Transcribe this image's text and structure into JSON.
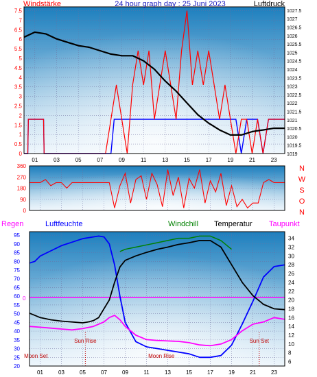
{
  "colors": {
    "wind": "#ff0000",
    "gust": "#0000ff",
    "pressure": "#000000",
    "direction": "#ff0000",
    "humidity": "#0000ff",
    "temperature": "#000000",
    "windchill": "#008000",
    "dewpoint": "#ff00ff",
    "rain": "#ff00ff",
    "annotation": "#c00000",
    "grid": "#6f6f9f"
  },
  "chart_data": [
    {
      "type": "line",
      "id": "wind-pressure",
      "title": "24 hour graph day : 25 Juni 2023",
      "left_label": "Windstärke",
      "right_label": "Luftdruck",
      "x_ticks": [
        "01",
        "03",
        "05",
        "07",
        "09",
        "11",
        "13",
        "15",
        "17",
        "19",
        "21",
        "23"
      ],
      "y_left_ticks": [
        "0",
        "0.5",
        "1",
        "1.5",
        "2",
        "2.5",
        "3",
        "3.5",
        "4",
        "4.5",
        "5",
        "5.5",
        "6",
        "6.5",
        "7",
        "7.5"
      ],
      "y_left_lim": [
        0,
        7.7
      ],
      "y_right_ticks": [
        "1019",
        "1019.5",
        "1020",
        "1020.5",
        "1021",
        "1021.5",
        "1022",
        "1022.5",
        "1023",
        "1023.5",
        "1024",
        "1024.5",
        "1025",
        "1025.5",
        "1026",
        "1026.5",
        "1027",
        "1027.5"
      ],
      "y_right_lim": [
        1019,
        1027.7
      ],
      "grid": true,
      "series": [
        {
          "key": "pressure",
          "x": [
            0,
            1,
            2,
            3,
            4,
            5,
            6,
            7,
            8,
            9,
            10,
            11,
            12,
            13,
            14,
            15,
            16,
            17,
            18,
            19,
            20,
            21,
            22,
            23,
            24
          ],
          "values": [
            1025.9,
            1026.2,
            1026.1,
            1025.8,
            1025.6,
            1025.4,
            1025.3,
            1025.1,
            1024.9,
            1024.8,
            1024.8,
            1024.5,
            1024.0,
            1023.3,
            1022.7,
            1022.0,
            1021.3,
            1020.8,
            1020.4,
            1020.1,
            1020.1,
            1020.3,
            1020.4,
            1020.5,
            1020.5
          ]
        },
        {
          "key": "gust",
          "x": [
            0,
            0.35,
            0.4,
            1.8,
            1.85,
            5.5,
            5.55,
            7.2,
            7.25,
            8.0,
            8.3,
            9.5,
            10.5,
            11.5,
            12.5,
            13.5,
            14.5,
            15.5,
            16.5,
            17.5,
            18.5,
            19.5,
            20.0,
            20.5,
            21.5,
            22.0,
            22.5,
            23.5,
            24
          ],
          "values": [
            0,
            0,
            1.8,
            1.8,
            0,
            0,
            0,
            0,
            0,
            0,
            1.8,
            1.8,
            1.8,
            1.8,
            1.8,
            1.8,
            1.8,
            1.8,
            1.8,
            1.8,
            1.8,
            1.8,
            0,
            1.8,
            1.8,
            0,
            1.8,
            1.8,
            1.8
          ]
        },
        {
          "key": "wind",
          "x": [
            0,
            0.35,
            0.4,
            1.8,
            1.85,
            7.0,
            7.5,
            8.5,
            9.0,
            9.5,
            10.0,
            10.5,
            11.0,
            11.5,
            12.0,
            12.5,
            13.0,
            13.5,
            14.0,
            14.5,
            15.0,
            15.5,
            16.0,
            16.5,
            17.0,
            17.5,
            18.0,
            18.5,
            19.0,
            19.5,
            20.0,
            20.5,
            21.0,
            21.5,
            22.0,
            22.5,
            23.0,
            23.5,
            24.0
          ],
          "values": [
            0,
            0,
            1.8,
            1.8,
            0,
            0,
            0,
            3.6,
            1.8,
            0,
            3.6,
            5.4,
            3.6,
            5.4,
            1.8,
            3.6,
            5.4,
            3.6,
            1.8,
            5.4,
            7.5,
            3.6,
            5.4,
            3.6,
            5.4,
            3.6,
            1.8,
            3.6,
            1.8,
            0,
            1.8,
            1.8,
            0,
            1.8,
            0,
            1.8,
            1.8,
            1.8,
            1.8
          ]
        }
      ]
    },
    {
      "type": "line",
      "id": "wind-direction",
      "y_ticks": [
        "0",
        "90",
        "180",
        "270",
        "360"
      ],
      "y_lim": [
        0,
        360
      ],
      "direction_labels": [
        "N",
        "W",
        "S",
        "O",
        "N"
      ],
      "grid": true,
      "series": [
        {
          "key": "direction",
          "x": [
            0,
            0.5,
            1.0,
            1.5,
            2.0,
            2.5,
            3.0,
            3.5,
            4.0,
            4.5,
            5.0,
            5.5,
            6.0,
            6.5,
            7.0,
            7.5,
            8.0,
            8.5,
            9.0,
            9.5,
            10.0,
            10.5,
            11.0,
            11.5,
            12.0,
            12.5,
            13.0,
            13.5,
            14.0,
            14.5,
            15.0,
            15.5,
            16.0,
            16.5,
            17.0,
            17.5,
            18.0,
            18.5,
            19.0,
            19.5,
            20.0,
            20.5,
            21.0,
            21.5,
            22.0,
            22.5,
            23.0,
            23.5,
            24.0
          ],
          "values": [
            225,
            225,
            225,
            250,
            200,
            225,
            225,
            180,
            225,
            225,
            225,
            225,
            225,
            225,
            225,
            225,
            20,
            200,
            300,
            60,
            250,
            280,
            90,
            300,
            210,
            30,
            330,
            120,
            270,
            20,
            260,
            180,
            330,
            60,
            240,
            150,
            300,
            40,
            200,
            30,
            90,
            20,
            60,
            60,
            225,
            250,
            225,
            225,
            225
          ]
        }
      ]
    },
    {
      "type": "line",
      "id": "humidity-temperature",
      "legend": [
        "Regen",
        "Luftfeuchte",
        "Windchill",
        "Temperatur",
        "Taupunkt"
      ],
      "x_ticks": [
        "01",
        "03",
        "05",
        "07",
        "09",
        "11",
        "13",
        "15",
        "17",
        "19",
        "21",
        "23"
      ],
      "y_left_ticks": [
        "20",
        "25",
        "30",
        "35",
        "40",
        "45",
        "50",
        "55",
        "60",
        "65",
        "70",
        "75",
        "80",
        "85",
        "90",
        "95"
      ],
      "y_left_lim": [
        20,
        97
      ],
      "y_right_ticks": [
        "6",
        "8",
        "10",
        "12",
        "14",
        "16",
        "18",
        "20",
        "22",
        "24",
        "26",
        "28",
        "30",
        "32",
        "34"
      ],
      "y_right_lim": [
        5,
        35.5
      ],
      "rain_label": "0",
      "annotations": [
        {
          "text": "Sun Rise",
          "x": 5.25
        },
        {
          "text": "Moon Set",
          "x": 0.6
        },
        {
          "text": "Moon Rise",
          "x": 12.4
        },
        {
          "text": "Sun Set",
          "x": 21.6
        }
      ],
      "grid": true,
      "series": [
        {
          "key": "humidity",
          "x": [
            0,
            0.5,
            1,
            2,
            3,
            4,
            5,
            6,
            6.5,
            7,
            7.5,
            8,
            8.5,
            9,
            10,
            11,
            12,
            13,
            14,
            15,
            16,
            17,
            18,
            19,
            20,
            21,
            22,
            23,
            24
          ],
          "values": [
            79,
            80,
            83,
            86,
            89,
            91,
            93,
            94,
            94.5,
            94,
            90,
            78,
            60,
            45,
            34,
            31,
            30,
            29,
            28,
            27,
            25,
            25,
            26,
            32,
            44,
            57,
            71,
            77,
            78
          ]
        },
        {
          "key": "temperature",
          "x": [
            0,
            0.5,
            1,
            2,
            3,
            4,
            5,
            5.5,
            6,
            6.5,
            7,
            7.5,
            8,
            8.5,
            9,
            10,
            11,
            12,
            13,
            14,
            15,
            16,
            17,
            18,
            19,
            20,
            21,
            22,
            23,
            24
          ],
          "values": [
            17,
            16.5,
            16,
            15.5,
            15.2,
            15,
            14.8,
            15,
            15.3,
            16,
            18,
            20,
            24,
            27.5,
            29,
            30,
            30.8,
            31.5,
            32,
            32.6,
            33,
            33.5,
            33.5,
            32,
            28,
            24,
            21,
            19,
            18,
            17.8
          ]
        },
        {
          "key": "windchill",
          "x": [
            8.5,
            9,
            10,
            11,
            12,
            13,
            14,
            15,
            16,
            17,
            18,
            19
          ],
          "values": [
            31,
            31.5,
            32,
            32.5,
            33,
            33.5,
            34,
            34,
            34.5,
            34.5,
            33.5,
            31.5
          ]
        },
        {
          "key": "dewpoint",
          "x": [
            0,
            1,
            2,
            3,
            4,
            5,
            6,
            7,
            7.5,
            8,
            8.5,
            9,
            10,
            11,
            12,
            13,
            14,
            15,
            16,
            17,
            18,
            19,
            20,
            21,
            22,
            23,
            24
          ],
          "values": [
            14,
            13.8,
            13.6,
            13.4,
            13.2,
            13.5,
            14,
            15,
            16,
            16.5,
            15.5,
            14,
            12,
            11,
            10.8,
            10.7,
            10.6,
            10.3,
            9.8,
            9.6,
            10,
            11,
            13,
            14.5,
            15,
            16,
            15.6
          ]
        }
      ]
    }
  ]
}
